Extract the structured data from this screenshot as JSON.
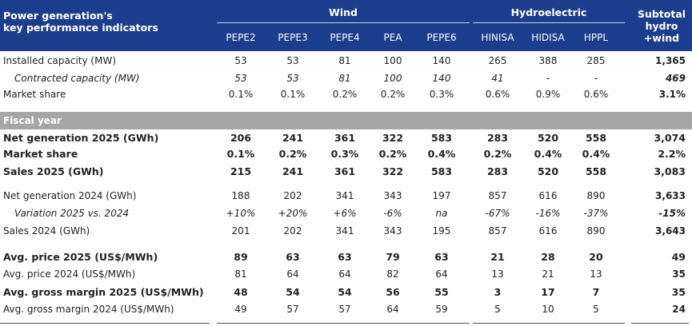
{
  "header": {
    "title_line1": "Power generation's",
    "title_line2": "key performance indicators",
    "group_wind": "Wind",
    "group_hydro": "Hydroelectric",
    "subtotal_line1": "Subtotal",
    "subtotal_line2": "hydro",
    "subtotal_line3": "+wind",
    "columns": [
      "PEPE2",
      "PEPE3",
      "PEPE4",
      "PEA",
      "PEPE6",
      "HINISA",
      "HIDISA",
      "HPPL"
    ]
  },
  "section_fiscal_year": "Fiscal year",
  "rows": [
    {
      "label": "Installed capacity (MW)",
      "values": [
        "53",
        "53",
        "81",
        "100",
        "140",
        "265",
        "388",
        "285"
      ],
      "subtotal": "1,365"
    },
    {
      "label": "Contracted capacity (MW)",
      "values": [
        "53",
        "53",
        "81",
        "100",
        "140",
        "41",
        "-",
        "-"
      ],
      "subtotal": "469"
    },
    {
      "label": "Market share",
      "values": [
        "0.1%",
        "0.1%",
        "0.2%",
        "0.2%",
        "0.3%",
        "0.6%",
        "0.9%",
        "0.6%"
      ],
      "subtotal": "3.1%"
    },
    {
      "label": "Net generation 2025 (GWh)",
      "values": [
        "206",
        "241",
        "361",
        "322",
        "583",
        "283",
        "520",
        "558"
      ],
      "subtotal": "3,074"
    },
    {
      "label": "Market share",
      "values": [
        "0.1%",
        "0.2%",
        "0.3%",
        "0.2%",
        "0.4%",
        "0.2%",
        "0.4%",
        "0.4%"
      ],
      "subtotal": "2.2%"
    },
    {
      "label": "Sales 2025 (GWh)",
      "values": [
        "215",
        "241",
        "361",
        "322",
        "583",
        "283",
        "520",
        "558"
      ],
      "subtotal": "3,083"
    },
    {
      "label": "Net generation 2024 (GWh)",
      "values": [
        "188",
        "202",
        "341",
        "343",
        "197",
        "857",
        "616",
        "890"
      ],
      "subtotal": "3,633"
    },
    {
      "label": "Variation 2025 vs. 2024",
      "values": [
        "+10%",
        "+20%",
        "+6%",
        "-6%",
        "na",
        "-67%",
        "-16%",
        "-37%"
      ],
      "subtotal": "-15%"
    },
    {
      "label": "Sales 2024 (GWh)",
      "values": [
        "201",
        "202",
        "341",
        "343",
        "195",
        "857",
        "616",
        "890"
      ],
      "subtotal": "3,643"
    },
    {
      "label": "Avg. price 2025 (US$/MWh)",
      "values": [
        "89",
        "63",
        "63",
        "79",
        "63",
        "21",
        "28",
        "20"
      ],
      "subtotal": "49"
    },
    {
      "label": "Avg. price 2024 (US$/MWh)",
      "values": [
        "81",
        "64",
        "64",
        "82",
        "64",
        "13",
        "21",
        "13"
      ],
      "subtotal": "35"
    },
    {
      "label": "Avg. gross margin 2025 (US$/MWh)",
      "values": [
        "48",
        "54",
        "54",
        "56",
        "55",
        "3",
        "17",
        "7"
      ],
      "subtotal": "35"
    },
    {
      "label": "Avg. gross margin 2024 (US$/MWh)",
      "values": [
        "49",
        "57",
        "57",
        "64",
        "59",
        "5",
        "10",
        "5"
      ],
      "subtotal": "24"
    }
  ],
  "colors": {
    "header_bg": "#1c3d8c",
    "band_bg": "#a6a6a6"
  }
}
